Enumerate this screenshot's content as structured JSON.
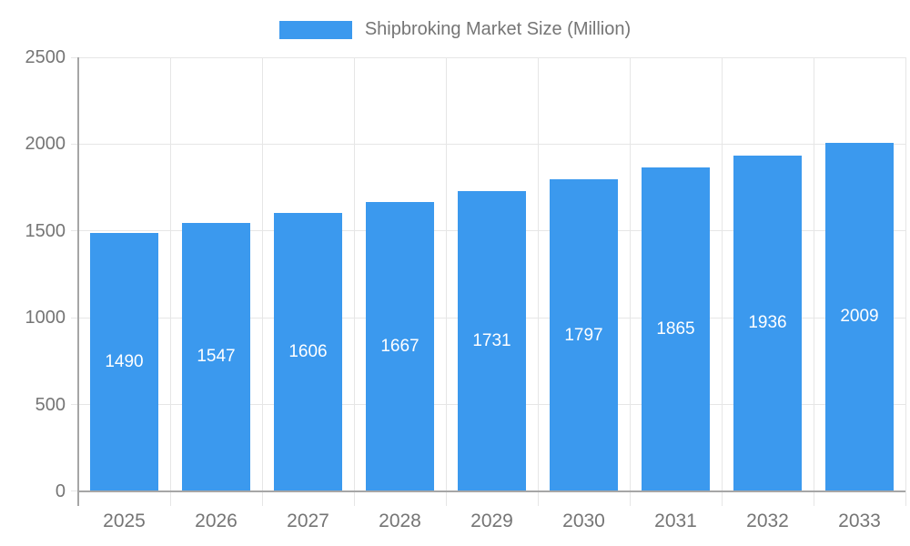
{
  "legend": {
    "label": "Shipbroking Market Size (Million)"
  },
  "chart_data": {
    "type": "bar",
    "title": "Shipbroking Market Size (Million)",
    "categories": [
      "2025",
      "2026",
      "2027",
      "2028",
      "2029",
      "2030",
      "2031",
      "2032",
      "2033"
    ],
    "series": [
      {
        "name": "Shipbroking Market Size (Million)",
        "values": [
          1490,
          1547,
          1606,
          1667,
          1731,
          1797,
          1865,
          1936,
          2009
        ]
      }
    ],
    "xlabel": "",
    "ylabel": "",
    "ylim": [
      0,
      2500
    ],
    "yticks": [
      0,
      500,
      1000,
      1500,
      2000,
      2500
    ],
    "grid": true,
    "legend_position": "top-center",
    "value_labels": "inside-middle",
    "colors": {
      "bar": "#3B99EE",
      "value_label": "#FFFFFF",
      "axis_text": "#757575",
      "gridline": "#E6E6E6",
      "axis_line": "#A6A6A6"
    }
  }
}
